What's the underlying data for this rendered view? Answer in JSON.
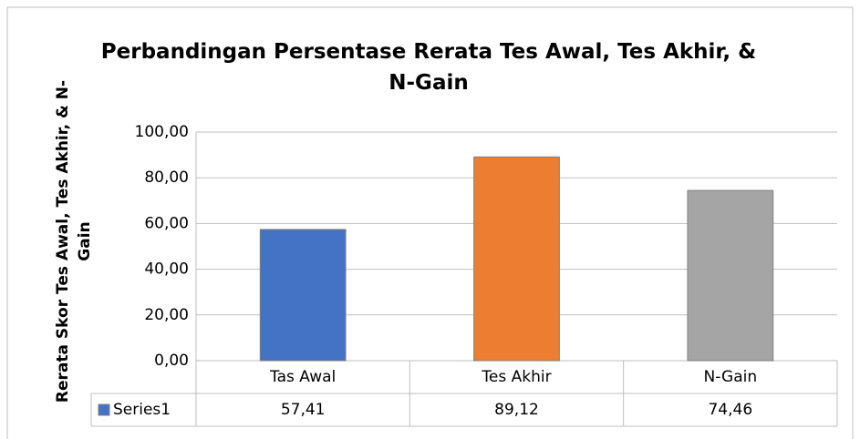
{
  "chart_data": {
    "type": "bar",
    "title": "Perbandingan Persentase Rerata Tes Awal, Tes Akhir, & N-Gain",
    "y_label": "Rerata Skor Tes Awal, Tes Akhir, & N-Gain",
    "categories": [
      "Tas Awal",
      "Tes Akhir",
      "N-Gain"
    ],
    "series": [
      {
        "name": "Series1",
        "color": "#4472c4",
        "point_colors": [
          "#4472c4",
          "#ed7d31",
          "#a5a5a5"
        ],
        "values": [
          57.41,
          89.12,
          74.46
        ],
        "value_labels": [
          "57,41",
          "89,12",
          "74,46"
        ]
      }
    ],
    "ylim": [
      0,
      100
    ],
    "yticks": [
      {
        "value": 0,
        "label": "0,00"
      },
      {
        "value": 20,
        "label": "20,00"
      },
      {
        "value": 40,
        "label": "40,00"
      },
      {
        "value": 60,
        "label": "60,00"
      },
      {
        "value": 80,
        "label": "80,00"
      },
      {
        "value": 100,
        "label": "100,00"
      }
    ],
    "grid": true
  }
}
